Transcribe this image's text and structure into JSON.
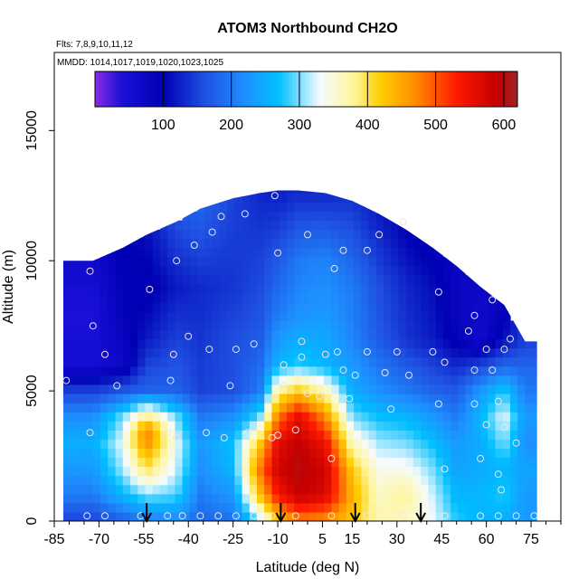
{
  "chart_data": {
    "type": "heatmap",
    "title": "ATOM3 Northbound CH2O",
    "flights_text": "Flts: 7,8,9,10,11,12",
    "mmdd_text": "MMDD: 1014,1017,1019,1020,1023,1025",
    "xlabel": "Latitude (deg N)",
    "ylabel": "Altitude (m)",
    "xlim": [
      -85,
      85
    ],
    "ylim": [
      0,
      18000
    ],
    "x_ticks": [
      -85,
      -70,
      -55,
      -40,
      -25,
      -10,
      5,
      15,
      30,
      45,
      60,
      75
    ],
    "x_tick_labels": [
      "-85",
      "-70",
      "-55",
      "-40",
      "-25",
      "-10",
      "5",
      "15",
      "30",
      "45",
      "60",
      "75"
    ],
    "y_ticks": [
      0,
      5000,
      10000,
      15000
    ],
    "y_tick_labels": [
      "0",
      "5000",
      "10000",
      "15000"
    ],
    "colorbar": {
      "range": [
        0,
        620
      ],
      "ticks": [
        100,
        200,
        300,
        400,
        500,
        600
      ],
      "tick_labels": [
        "100",
        "200",
        "300",
        "400",
        "500",
        "600"
      ],
      "stops": [
        {
          "v": 0,
          "c": "#8a2be2"
        },
        {
          "v": 40,
          "c": "#1a10d8"
        },
        {
          "v": 100,
          "c": "#0000b4"
        },
        {
          "v": 160,
          "c": "#1f4fe0"
        },
        {
          "v": 220,
          "c": "#1e90ff"
        },
        {
          "v": 270,
          "c": "#00bfff"
        },
        {
          "v": 330,
          "c": "#f5fbff"
        },
        {
          "v": 380,
          "c": "#fff59a"
        },
        {
          "v": 420,
          "c": "#ffcc00"
        },
        {
          "v": 470,
          "c": "#ff8c00"
        },
        {
          "v": 530,
          "c": "#ff1a00"
        },
        {
          "v": 590,
          "c": "#c40000"
        },
        {
          "v": 620,
          "c": "#9b2525"
        }
      ]
    },
    "arrows_lat": [
      -54,
      -9,
      16,
      38
    ],
    "profiles": [
      {
        "lat": -72,
        "top": 10000,
        "levels": [
          [
            0,
            150
          ],
          [
            1000,
            200
          ],
          [
            2000,
            230
          ],
          [
            3000,
            250
          ],
          [
            4000,
            220
          ],
          [
            5000,
            150
          ],
          [
            6000,
            50
          ],
          [
            8000,
            40
          ],
          [
            10000,
            60
          ]
        ]
      },
      {
        "lat": -62,
        "top": 10500,
        "levels": [
          [
            0,
            170
          ],
          [
            1000,
            260
          ],
          [
            2000,
            310
          ],
          [
            3000,
            330
          ],
          [
            4000,
            300
          ],
          [
            5000,
            170
          ],
          [
            6000,
            70
          ],
          [
            8000,
            90
          ],
          [
            10500,
            100
          ]
        ]
      },
      {
        "lat": -54,
        "top": 11000,
        "levels": [
          [
            0,
            200
          ],
          [
            1000,
            300
          ],
          [
            2000,
            400
          ],
          [
            3000,
            470
          ],
          [
            3500,
            480
          ],
          [
            4500,
            300
          ],
          [
            5000,
            180
          ],
          [
            7000,
            120
          ],
          [
            9000,
            90
          ],
          [
            11000,
            110
          ]
        ]
      },
      {
        "lat": -44,
        "top": 11500,
        "levels": [
          [
            0,
            210
          ],
          [
            1000,
            290
          ],
          [
            2000,
            320
          ],
          [
            3000,
            330
          ],
          [
            4000,
            300
          ],
          [
            5000,
            180
          ],
          [
            7000,
            150
          ],
          [
            9000,
            120
          ],
          [
            11500,
            160
          ]
        ]
      },
      {
        "lat": -36,
        "top": 12000,
        "levels": [
          [
            0,
            180
          ],
          [
            1000,
            200
          ],
          [
            2000,
            220
          ],
          [
            3000,
            230
          ],
          [
            4000,
            200
          ],
          [
            5000,
            150
          ],
          [
            7000,
            140
          ],
          [
            9000,
            130
          ],
          [
            12000,
            180
          ]
        ]
      },
      {
        "lat": -25,
        "top": 12400,
        "levels": [
          [
            0,
            190
          ],
          [
            1000,
            230
          ],
          [
            2000,
            260
          ],
          [
            3000,
            270
          ],
          [
            4000,
            220
          ],
          [
            5000,
            160
          ],
          [
            7000,
            160
          ],
          [
            9000,
            140
          ],
          [
            12400,
            150
          ]
        ]
      },
      {
        "lat": -16,
        "top": 12600,
        "levels": [
          [
            0,
            300
          ],
          [
            1000,
            430
          ],
          [
            2000,
            480
          ],
          [
            3000,
            420
          ],
          [
            4000,
            300
          ],
          [
            5000,
            200
          ],
          [
            7000,
            170
          ],
          [
            10000,
            150
          ],
          [
            12600,
            130
          ]
        ]
      },
      {
        "lat": -10,
        "top": 12700,
        "levels": [
          [
            0,
            420
          ],
          [
            1000,
            540
          ],
          [
            2000,
            580
          ],
          [
            3000,
            560
          ],
          [
            4000,
            480
          ],
          [
            5000,
            380
          ],
          [
            6000,
            260
          ],
          [
            8000,
            200
          ],
          [
            10000,
            170
          ],
          [
            12700,
            120
          ]
        ]
      },
      {
        "lat": -3,
        "top": 12700,
        "levels": [
          [
            0,
            470
          ],
          [
            1000,
            590
          ],
          [
            2000,
            600
          ],
          [
            3000,
            590
          ],
          [
            4000,
            560
          ],
          [
            5000,
            420
          ],
          [
            6000,
            280
          ],
          [
            8000,
            220
          ],
          [
            10000,
            200
          ],
          [
            12700,
            130
          ]
        ]
      },
      {
        "lat": 6,
        "top": 12600,
        "levels": [
          [
            0,
            460
          ],
          [
            1000,
            570
          ],
          [
            2000,
            580
          ],
          [
            3000,
            550
          ],
          [
            4000,
            470
          ],
          [
            5000,
            370
          ],
          [
            6000,
            260
          ],
          [
            8000,
            230
          ],
          [
            10000,
            210
          ],
          [
            12600,
            130
          ]
        ]
      },
      {
        "lat": 15,
        "top": 12300,
        "levels": [
          [
            0,
            420
          ],
          [
            1000,
            440
          ],
          [
            2000,
            420
          ],
          [
            3000,
            360
          ],
          [
            4000,
            300
          ],
          [
            5000,
            250
          ],
          [
            7000,
            210
          ],
          [
            9000,
            200
          ],
          [
            12300,
            140
          ]
        ]
      },
      {
        "lat": 24,
        "top": 11800,
        "levels": [
          [
            0,
            370
          ],
          [
            1000,
            360
          ],
          [
            2000,
            340
          ],
          [
            3000,
            310
          ],
          [
            4000,
            270
          ],
          [
            5000,
            220
          ],
          [
            7000,
            170
          ],
          [
            9000,
            160
          ],
          [
            11800,
            120
          ]
        ]
      },
      {
        "lat": 33,
        "top": 11200,
        "levels": [
          [
            0,
            360
          ],
          [
            1000,
            380
          ],
          [
            2000,
            340
          ],
          [
            3000,
            300
          ],
          [
            4000,
            260
          ],
          [
            5000,
            200
          ],
          [
            7000,
            140
          ],
          [
            9000,
            130
          ],
          [
            11200,
            100
          ]
        ]
      },
      {
        "lat": 42,
        "top": 10500,
        "levels": [
          [
            0,
            330
          ],
          [
            1000,
            320
          ],
          [
            2000,
            300
          ],
          [
            3000,
            270
          ],
          [
            4000,
            230
          ],
          [
            5000,
            180
          ],
          [
            7000,
            120
          ],
          [
            9000,
            110
          ],
          [
            10500,
            90
          ]
        ]
      },
      {
        "lat": 50,
        "top": 9800,
        "levels": [
          [
            0,
            280
          ],
          [
            1000,
            260
          ],
          [
            2000,
            240
          ],
          [
            3000,
            230
          ],
          [
            4000,
            200
          ],
          [
            5000,
            170
          ],
          [
            7000,
            90
          ],
          [
            8000,
            80
          ],
          [
            9800,
            80
          ]
        ]
      },
      {
        "lat": 58,
        "top": 9000,
        "levels": [
          [
            0,
            260
          ],
          [
            1000,
            260
          ],
          [
            2000,
            250
          ],
          [
            3000,
            250
          ],
          [
            4000,
            260
          ],
          [
            5000,
            230
          ],
          [
            6000,
            150
          ],
          [
            7000,
            60
          ],
          [
            9000,
            70
          ]
        ]
      },
      {
        "lat": 66,
        "top": 8300,
        "levels": [
          [
            0,
            250
          ],
          [
            1000,
            280
          ],
          [
            2000,
            260
          ],
          [
            3000,
            300
          ],
          [
            4000,
            330
          ],
          [
            5000,
            280
          ],
          [
            6000,
            180
          ],
          [
            7000,
            110
          ],
          [
            8300,
            90
          ]
        ]
      },
      {
        "lat": 73,
        "top": 6900,
        "levels": [
          [
            0,
            230
          ],
          [
            1000,
            230
          ],
          [
            2000,
            240
          ],
          [
            3000,
            220
          ],
          [
            4000,
            230
          ],
          [
            5000,
            200
          ],
          [
            6000,
            180
          ],
          [
            6900,
            150
          ]
        ]
      }
    ],
    "sample_points": [
      [
        -74,
        200
      ],
      [
        -68,
        200
      ],
      [
        -56,
        200
      ],
      [
        -47,
        200
      ],
      [
        -42,
        200
      ],
      [
        -36,
        200
      ],
      [
        -30,
        200
      ],
      [
        -24,
        200
      ],
      [
        -18,
        200
      ],
      [
        -73,
        3400
      ],
      [
        -44,
        3200
      ],
      [
        -47,
        3400
      ],
      [
        -34,
        3400
      ],
      [
        -28,
        3200
      ],
      [
        -20,
        3400
      ],
      [
        -12,
        3200
      ],
      [
        -81,
        5400
      ],
      [
        -64,
        5200
      ],
      [
        -46,
        5400
      ],
      [
        -26,
        5200
      ],
      [
        -8,
        5200
      ],
      [
        0,
        4900
      ],
      [
        4,
        4800
      ],
      [
        14,
        4700
      ],
      [
        28,
        4300
      ],
      [
        44,
        4500
      ],
      [
        56,
        4500
      ],
      [
        64,
        4600
      ],
      [
        -8,
        6000
      ],
      [
        -2,
        6300
      ],
      [
        6,
        6400
      ],
      [
        12,
        5800
      ],
      [
        16,
        5600
      ],
      [
        26,
        5700
      ],
      [
        34,
        5600
      ],
      [
        46,
        6100
      ],
      [
        56,
        5800
      ],
      [
        62,
        5800
      ],
      [
        -72,
        7500
      ],
      [
        -68,
        6400
      ],
      [
        -45,
        6400
      ],
      [
        -40,
        7100
      ],
      [
        -33,
        6600
      ],
      [
        -24,
        6600
      ],
      [
        -18,
        6800
      ],
      [
        -2,
        6900
      ],
      [
        10,
        6500
      ],
      [
        20,
        6500
      ],
      [
        30,
        6500
      ],
      [
        42,
        6500
      ],
      [
        54,
        7300
      ],
      [
        60,
        6600
      ],
      [
        66,
        6600
      ],
      [
        68,
        7000
      ],
      [
        -73,
        9600
      ],
      [
        -53,
        8900
      ],
      [
        -44,
        10000
      ],
      [
        -38,
        10600
      ],
      [
        -32,
        11100
      ],
      [
        -29,
        11700
      ],
      [
        -21,
        11800
      ],
      [
        -10,
        10300
      ],
      [
        0,
        11000
      ],
      [
        9,
        9700
      ],
      [
        12,
        10400
      ],
      [
        20,
        10400
      ],
      [
        24,
        11000
      ],
      [
        32,
        11500
      ],
      [
        44,
        8800
      ],
      [
        56,
        7900
      ],
      [
        62,
        8500
      ],
      [
        -11,
        12500
      ],
      [
        65,
        1200
      ],
      [
        64,
        1800
      ],
      [
        70,
        3000
      ],
      [
        58,
        2400
      ],
      [
        46,
        2000
      ],
      [
        8,
        2400
      ],
      [
        -10,
        3300
      ],
      [
        -4,
        3500
      ],
      [
        46,
        200
      ],
      [
        58,
        200
      ],
      [
        64,
        200
      ],
      [
        70,
        200
      ],
      [
        76,
        200
      ],
      [
        -12,
        200
      ],
      [
        -4,
        200
      ],
      [
        8,
        200
      ],
      [
        20,
        200
      ],
      [
        32,
        200
      ],
      [
        38,
        200
      ],
      [
        60,
        3700
      ],
      [
        66,
        3600
      ]
    ]
  }
}
